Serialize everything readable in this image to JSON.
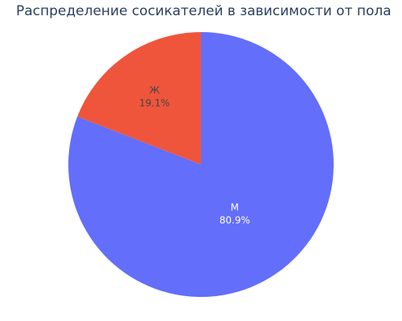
{
  "chart_data": {
    "type": "pie",
    "title": "Распределение сосикателей в зависимости от пола",
    "categories": [
      "М",
      "Ж"
    ],
    "values": [
      80.9,
      19.1
    ],
    "labels": [
      {
        "category": "М",
        "percent_text": "80.9%"
      },
      {
        "category": "Ж",
        "percent_text": "19.1%"
      }
    ],
    "colors": [
      "#636efa",
      "#ef553b"
    ],
    "label_colors": [
      "#ffffff",
      "#444444"
    ],
    "start_angle": "12-o'clock",
    "direction": "clockwise",
    "legend": "none"
  }
}
